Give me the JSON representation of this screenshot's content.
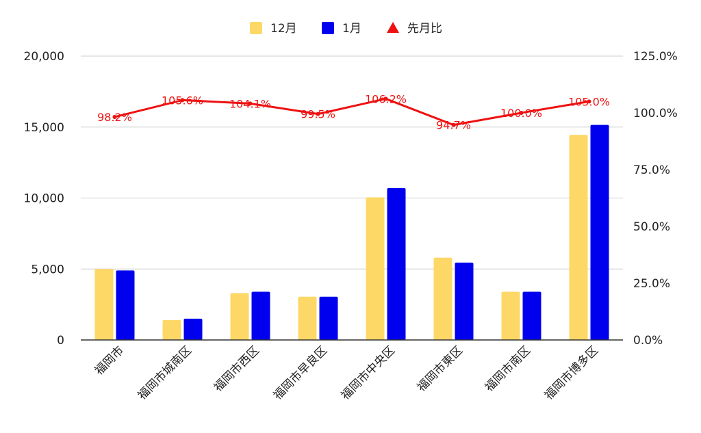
{
  "chart_data": {
    "type": "bar",
    "categories": [
      "福岡市",
      "福岡市城南区",
      "福岡市西区",
      "福岡市早良区",
      "福岡市中央区",
      "福岡市東区",
      "福岡市南区",
      "福岡市博多区"
    ],
    "series": [
      {
        "name": "12月",
        "type": "bar",
        "axis": "left",
        "color": "#FDD867",
        "values": [
          5000,
          1400,
          3300,
          3050,
          10050,
          5800,
          3400,
          14450
        ]
      },
      {
        "name": "1月",
        "type": "bar",
        "axis": "left",
        "color": "#0000EE",
        "values": [
          4900,
          1500,
          3400,
          3050,
          10700,
          5450,
          3400,
          15150
        ]
      },
      {
        "name": "先月比",
        "type": "line",
        "axis": "right",
        "color": "#EE1111",
        "values": [
          98.2,
          105.6,
          104.1,
          99.5,
          106.2,
          94.7,
          100.0,
          105.0
        ],
        "labels": [
          "98.2%",
          "105.6%",
          "104.1%",
          "99.5%",
          "106.2%",
          "94.7%",
          "100.0%",
          "105.0%"
        ]
      }
    ],
    "y_left": {
      "ticks": [
        "0",
        "5,000",
        "10,000",
        "15,000",
        "20,000"
      ],
      "min": 0,
      "max": 20000
    },
    "y_right": {
      "ticks": [
        "0.0%",
        "25.0%",
        "50.0%",
        "75.0%",
        "100.0%",
        "125.0%"
      ],
      "min": 0,
      "max": 125
    },
    "grid": true,
    "legend_position": "top"
  }
}
